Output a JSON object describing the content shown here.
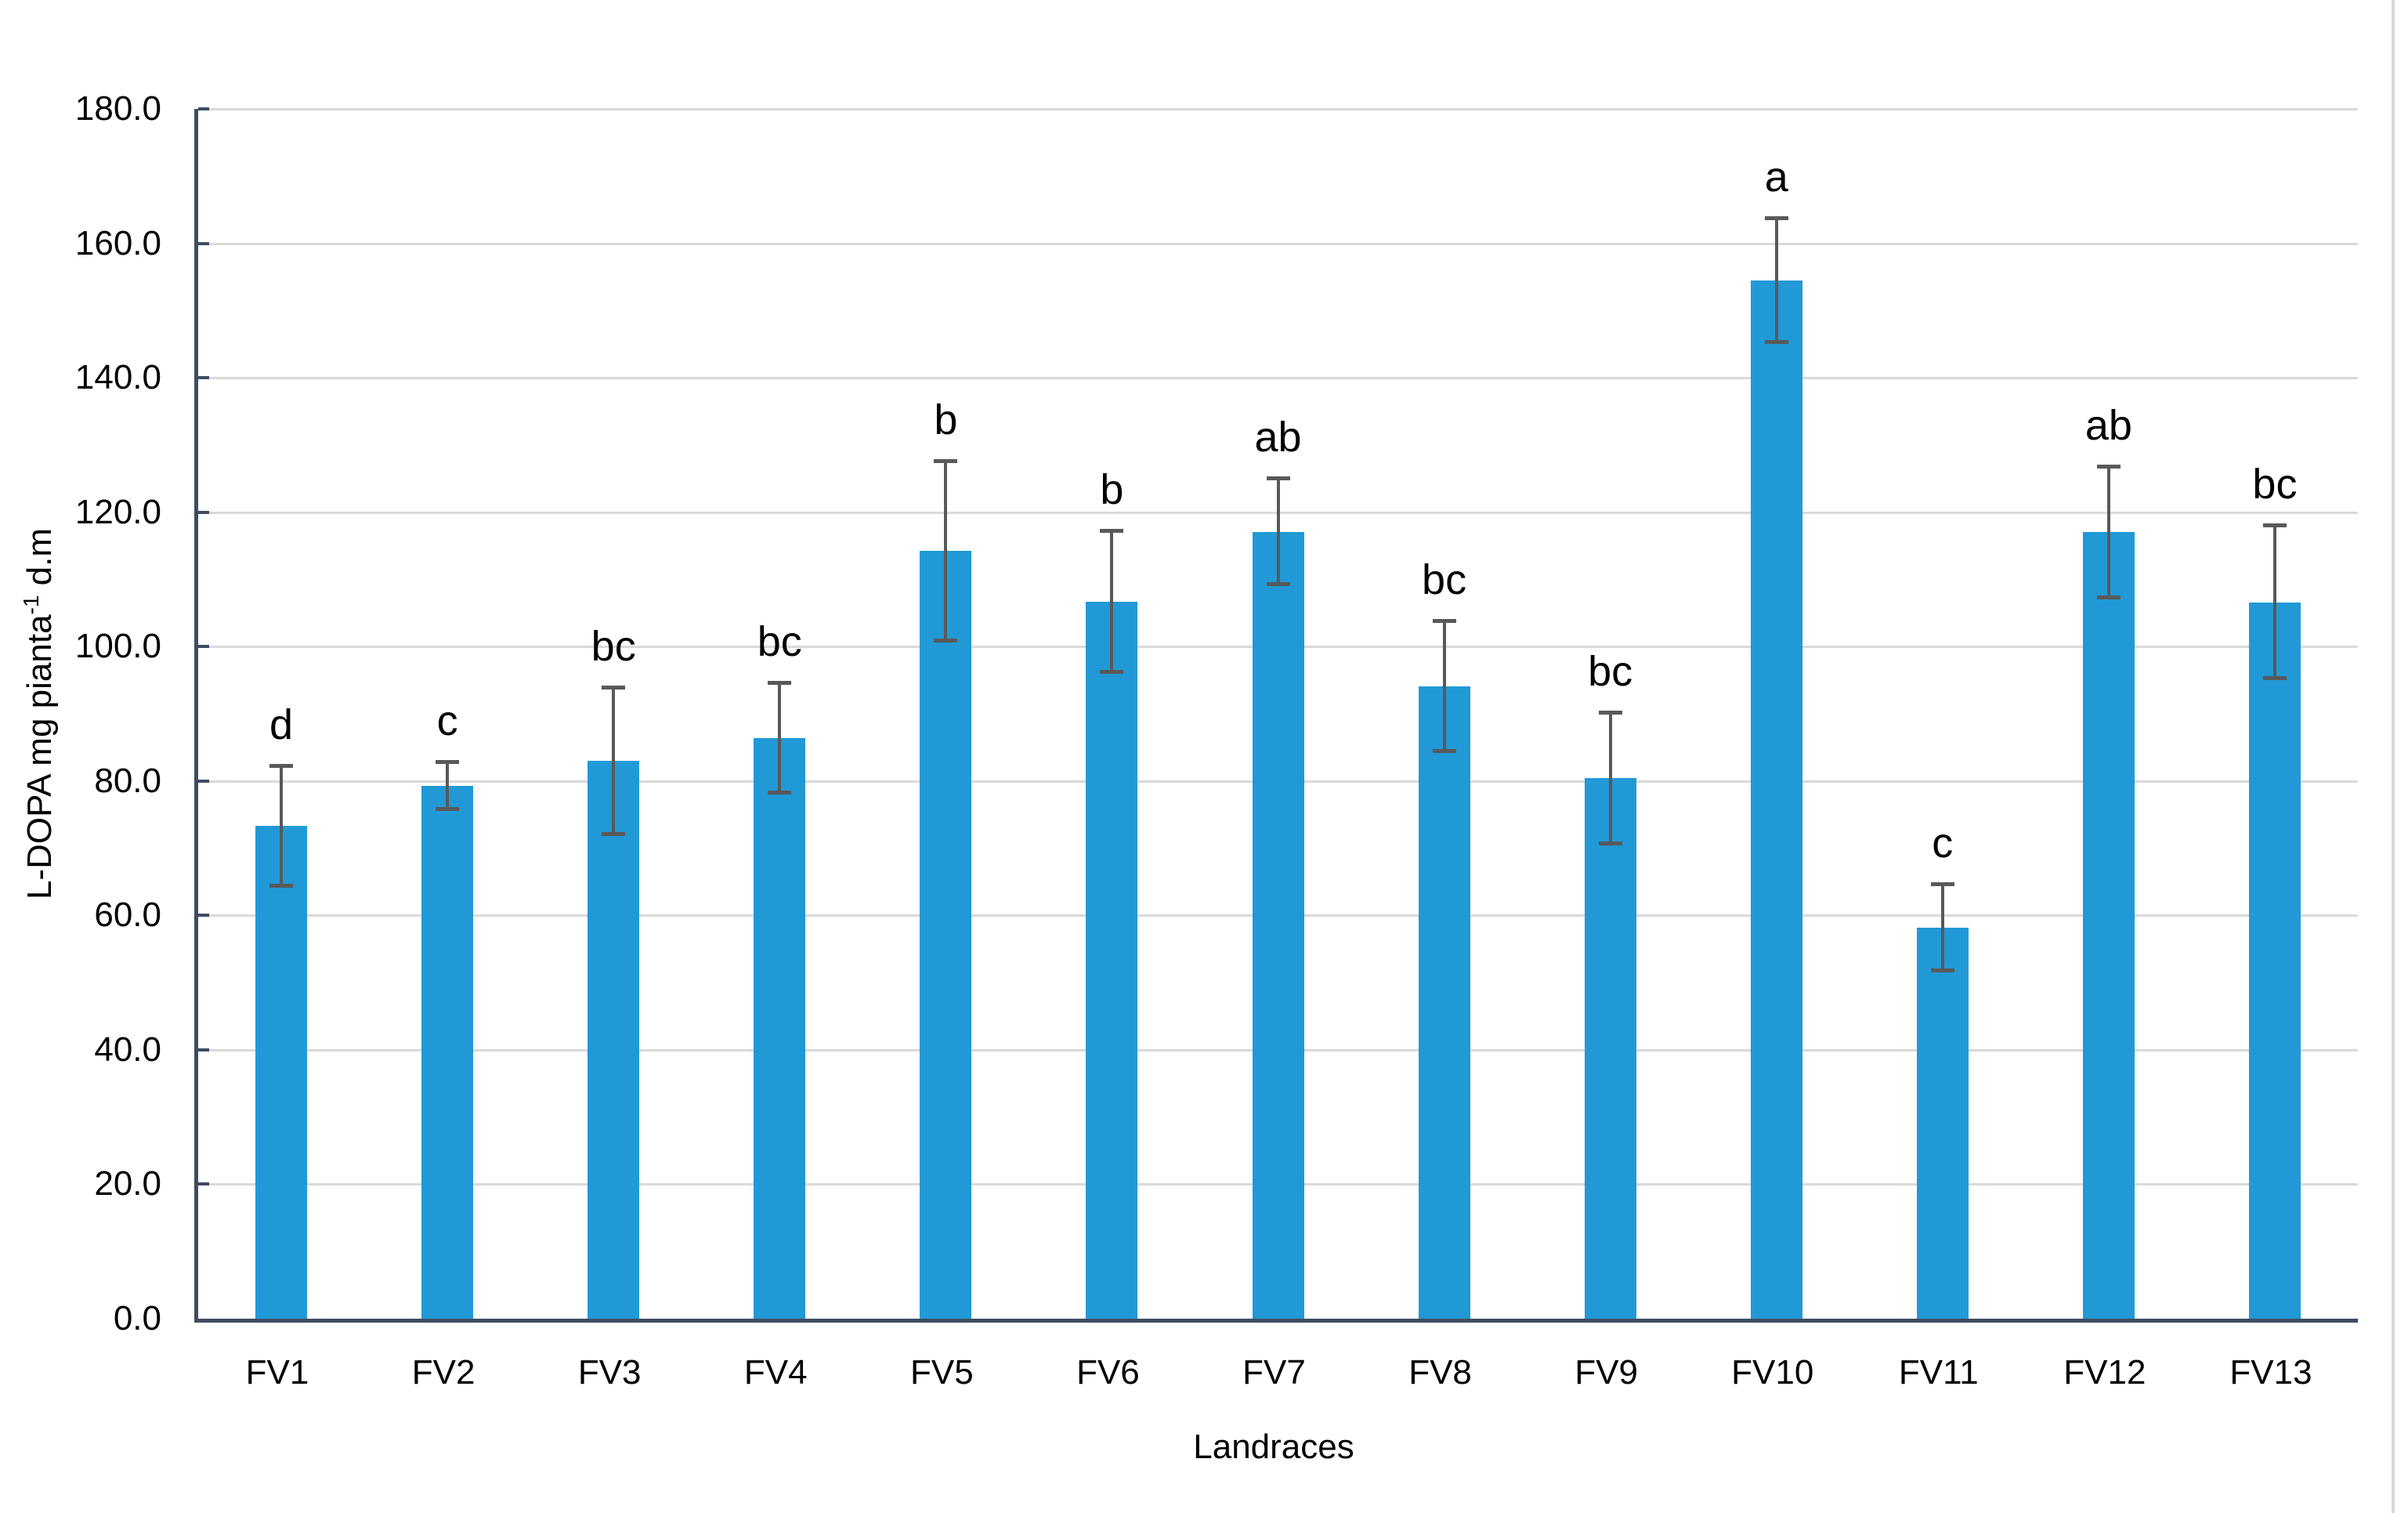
{
  "chart_data": {
    "type": "bar",
    "title": "",
    "xlabel": "Landraces",
    "ylabel_pre": "L-DOPA mg pianta",
    "ylabel_sup": "-1",
    "ylabel_post": " d.m",
    "ylim": [
      0,
      180
    ],
    "ytick_step": 20,
    "ytick_labels": [
      "0.0",
      "20.0",
      "40.0",
      "60.0",
      "80.0",
      "100.0",
      "120.0",
      "140.0",
      "160.0",
      "180.0"
    ],
    "grid": "horizontal",
    "legend_position": "none",
    "categories": [
      "FV1",
      "FV2",
      "FV3",
      "FV4",
      "FV5",
      "FV6",
      "FV7",
      "FV8",
      "FV9",
      "FV10",
      "FV11",
      "FV12",
      "FV13"
    ],
    "series": [
      {
        "name": "L-DOPA mg pianta-1 d.m",
        "values": [
          73.3,
          79.3,
          83.0,
          86.4,
          114.2,
          106.7,
          117.1,
          94.1,
          80.4,
          154.5,
          58.2,
          117.0,
          106.6
        ],
        "error_bars": [
          8.9,
          3.5,
          10.9,
          8.2,
          13.3,
          10.5,
          7.9,
          9.7,
          9.7,
          9.2,
          6.4,
          9.7,
          11.4
        ],
        "sig_letters": [
          "d",
          "c",
          "bc",
          "bc",
          "b",
          "b",
          "ab",
          "bc",
          "bc",
          "a",
          "c",
          "ab",
          "bc"
        ]
      }
    ],
    "colors": {
      "bar": "#2199D6",
      "error_bar": "#595959",
      "gridline": "#D9D9D9",
      "axis": "#3E4C60",
      "text": "#000000",
      "chart_border": "#D9D9D9",
      "background": "#FFFFFF"
    }
  }
}
